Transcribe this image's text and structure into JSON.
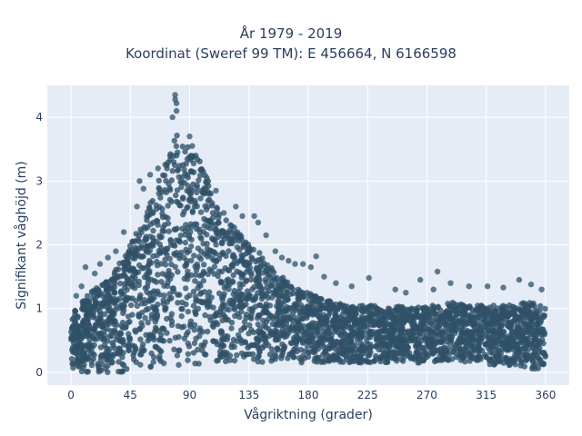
{
  "chart_data": {
    "type": "scatter",
    "title_lines": [
      "År 1979 - 2019",
      "Koordinat (Sweref 99 TM): E 456664, N 6166598"
    ],
    "xlabel": "Vågriktning (grader)",
    "ylabel": "Signifikant våghöjd (m)",
    "xlim": [
      -18,
      378
    ],
    "ylim": [
      -0.2,
      4.5
    ],
    "xticks": [
      0,
      45,
      90,
      135,
      180,
      225,
      270,
      315,
      360
    ],
    "yticks": [
      0,
      1,
      2,
      3,
      4
    ],
    "grid": true,
    "colors": {
      "marker": "#2f5168",
      "plot_background": "#e5ecf6",
      "grid": "#ffffff"
    },
    "series": [
      {
        "envelope": {
          "direction_deg": [
            0,
            10,
            20,
            30,
            40,
            50,
            60,
            70,
            80,
            90,
            100,
            110,
            120,
            130,
            140,
            150,
            160,
            170,
            180,
            190,
            200,
            210,
            220,
            230,
            240,
            250,
            260,
            270,
            280,
            290,
            300,
            310,
            320,
            330,
            340,
            350,
            360
          ],
          "max_height_m": [
            0.95,
            1.15,
            1.35,
            1.5,
            1.85,
            2.2,
            2.65,
            3.2,
            3.75,
            3.55,
            3.25,
            2.7,
            2.35,
            2.15,
            1.95,
            1.7,
            1.5,
            1.35,
            1.25,
            1.15,
            1.1,
            1.05,
            1.05,
            1.05,
            1.0,
            1.05,
            1.0,
            1.05,
            1.05,
            1.1,
            1.05,
            1.05,
            1.05,
            1.05,
            1.1,
            1.1,
            1.05
          ],
          "min_height_m": [
            0.05,
            0.0,
            0.0,
            0.0,
            0.0,
            0.05,
            0.05,
            0.05,
            0.1,
            0.1,
            0.1,
            0.15,
            0.15,
            0.15,
            0.15,
            0.15,
            0.15,
            0.15,
            0.15,
            0.15,
            0.15,
            0.15,
            0.15,
            0.15,
            0.15,
            0.15,
            0.15,
            0.15,
            0.15,
            0.15,
            0.15,
            0.15,
            0.1,
            0.1,
            0.1,
            0.05,
            0.05
          ]
        },
        "outliers": [
          [
            79,
            4.35
          ],
          [
            79,
            4.28
          ],
          [
            80,
            4.22
          ],
          [
            80,
            4.1
          ],
          [
            77,
            4.0
          ],
          [
            90,
            3.7
          ],
          [
            92,
            3.55
          ],
          [
            52,
            3.0
          ],
          [
            55,
            2.88
          ],
          [
            50,
            2.6
          ],
          [
            40,
            2.2
          ],
          [
            47,
            2.05
          ],
          [
            28,
            1.8
          ],
          [
            18,
            1.55
          ],
          [
            8,
            1.35
          ],
          [
            4,
            1.2
          ],
          [
            103,
            3.05
          ],
          [
            110,
            2.85
          ],
          [
            116,
            2.5
          ],
          [
            125,
            2.6
          ],
          [
            130,
            2.45
          ],
          [
            139,
            2.45
          ],
          [
            142,
            2.35
          ],
          [
            148,
            2.15
          ],
          [
            155,
            1.9
          ],
          [
            160,
            1.8
          ],
          [
            165,
            1.75
          ],
          [
            170,
            1.7
          ],
          [
            176,
            1.7
          ],
          [
            182,
            1.65
          ],
          [
            186,
            1.82
          ],
          [
            192,
            1.5
          ],
          [
            201,
            1.4
          ],
          [
            213,
            1.35
          ],
          [
            226,
            1.48
          ],
          [
            246,
            1.3
          ],
          [
            254,
            1.25
          ],
          [
            265,
            1.45
          ],
          [
            275,
            1.3
          ],
          [
            278,
            1.58
          ],
          [
            288,
            1.4
          ],
          [
            302,
            1.35
          ],
          [
            316,
            1.35
          ],
          [
            328,
            1.33
          ],
          [
            340,
            1.45
          ],
          [
            349,
            1.38
          ],
          [
            357,
            1.3
          ],
          [
            11,
            1.65
          ],
          [
            22,
            1.7
          ],
          [
            34,
            1.9
          ],
          [
            60,
            3.1
          ],
          [
            66,
            3.2
          ]
        ]
      }
    ]
  }
}
